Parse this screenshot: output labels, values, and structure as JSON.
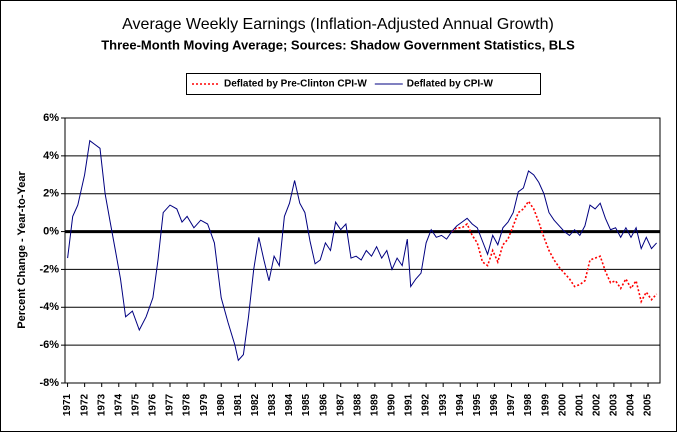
{
  "chart_data": {
    "type": "line",
    "title": "Average Weekly Earnings (Inflation-Adjusted Annual Growth)",
    "subtitle": "Three-Month Moving Average; Sources: Shadow Government Statistics, BLS",
    "y_label": "Percent Change - Year-to-Year",
    "x": [
      1971.0,
      1971.3,
      1971.6,
      1972.0,
      1972.3,
      1972.6,
      1972.9,
      1973.2,
      1973.5,
      1973.8,
      1974.1,
      1974.4,
      1974.8,
      1975.2,
      1975.6,
      1976.0,
      1976.3,
      1976.6,
      1977.0,
      1977.4,
      1977.7,
      1978.0,
      1978.4,
      1978.8,
      1979.2,
      1979.6,
      1980.0,
      1980.4,
      1980.8,
      1981.0,
      1981.3,
      1981.6,
      1981.9,
      1982.2,
      1982.5,
      1982.8,
      1983.1,
      1983.4,
      1983.7,
      1984.0,
      1984.3,
      1984.6,
      1984.9,
      1985.2,
      1985.5,
      1985.8,
      1986.1,
      1986.4,
      1986.7,
      1987.0,
      1987.3,
      1987.6,
      1987.9,
      1988.2,
      1988.5,
      1988.8,
      1989.1,
      1989.4,
      1989.7,
      1990.0,
      1990.3,
      1990.6,
      1990.9,
      1991.1,
      1991.4,
      1991.7,
      1992.0,
      1992.3,
      1992.6,
      1992.9,
      1993.2,
      1993.5,
      1993.8,
      1994.1,
      1994.4,
      1994.7,
      1995.0,
      1995.3,
      1995.6,
      1995.9,
      1996.2,
      1996.5,
      1996.8,
      1997.1,
      1997.4,
      1997.7,
      1998.0,
      1998.3,
      1998.6,
      1998.9,
      1999.2,
      1999.5,
      1999.8,
      2000.1,
      2000.4,
      2000.7,
      2001.0,
      2001.3,
      2001.6,
      2001.9,
      2002.2,
      2002.5,
      2002.8,
      2003.1,
      2003.4,
      2003.7,
      2004.0,
      2004.3,
      2004.6,
      2004.9,
      2005.2,
      2005.5
    ],
    "series": [
      {
        "name": "Deflated by Pre-Clinton CPI-W",
        "color": "#ff0000",
        "dash": "dotted",
        "values": [
          null,
          null,
          null,
          null,
          null,
          null,
          null,
          null,
          null,
          null,
          null,
          null,
          null,
          null,
          null,
          null,
          null,
          null,
          null,
          null,
          null,
          null,
          null,
          null,
          null,
          null,
          null,
          null,
          null,
          null,
          null,
          null,
          null,
          null,
          null,
          null,
          null,
          null,
          null,
          null,
          null,
          null,
          null,
          null,
          null,
          null,
          null,
          null,
          null,
          null,
          null,
          null,
          null,
          null,
          null,
          null,
          null,
          null,
          null,
          null,
          null,
          null,
          null,
          null,
          null,
          null,
          null,
          null,
          null,
          null,
          null,
          0.0,
          0.2,
          0.2,
          0.4,
          -0.2,
          -0.6,
          -1.6,
          -1.8,
          -1.0,
          -1.6,
          -0.7,
          -0.4,
          0.3,
          1.0,
          1.2,
          1.6,
          1.2,
          0.5,
          -0.3,
          -1.0,
          -1.5,
          -1.9,
          -2.2,
          -2.5,
          -2.9,
          -2.8,
          -2.6,
          -1.5,
          -1.4,
          -1.3,
          -2.1,
          -2.7,
          -2.6,
          -3.0,
          -2.5,
          -3.0,
          -2.6,
          -3.7,
          -3.2,
          -3.6,
          -3.3
        ]
      },
      {
        "name": "Deflated by CPI-W",
        "color": "#000080",
        "dash": "solid",
        "values": [
          -1.4,
          0.8,
          1.4,
          3.0,
          4.8,
          4.6,
          4.4,
          2.0,
          0.5,
          -1.0,
          -2.5,
          -4.5,
          -4.2,
          -5.2,
          -4.5,
          -3.5,
          -1.5,
          1.0,
          1.4,
          1.2,
          0.5,
          0.8,
          0.2,
          0.6,
          0.4,
          -0.6,
          -3.5,
          -4.8,
          -6.0,
          -6.8,
          -6.5,
          -4.5,
          -2.0,
          -0.3,
          -1.5,
          -2.6,
          -1.3,
          -1.8,
          0.8,
          1.5,
          2.7,
          1.5,
          1.0,
          -0.5,
          -1.7,
          -1.5,
          -0.6,
          -1.0,
          0.5,
          0.1,
          0.4,
          -1.4,
          -1.3,
          -1.5,
          -1.0,
          -1.3,
          -0.8,
          -1.4,
          -1.0,
          -2.0,
          -1.4,
          -1.8,
          -0.4,
          -2.9,
          -2.5,
          -2.2,
          -0.6,
          0.1,
          -0.3,
          -0.2,
          -0.4,
          0.0,
          0.3,
          0.5,
          0.7,
          0.4,
          0.2,
          -0.5,
          -1.2,
          -0.2,
          -0.7,
          0.2,
          0.5,
          1.0,
          2.1,
          2.3,
          3.2,
          3.0,
          2.6,
          2.0,
          1.0,
          0.6,
          0.3,
          0.0,
          -0.2,
          0.1,
          -0.2,
          0.3,
          1.4,
          1.2,
          1.5,
          0.7,
          0.1,
          0.2,
          -0.3,
          0.2,
          -0.3,
          0.2,
          -0.9,
          -0.3,
          -0.9,
          -0.6
        ]
      }
    ],
    "xlim": [
      1970.85,
      2005.7
    ],
    "xticks": [
      1971,
      1972,
      1973,
      1974,
      1975,
      1976,
      1977,
      1978,
      1979,
      1980,
      1981,
      1982,
      1983,
      1984,
      1985,
      1986,
      1987,
      1988,
      1989,
      1990,
      1991,
      1992,
      1993,
      1994,
      1995,
      1996,
      1997,
      1998,
      1999,
      2000,
      2001,
      2002,
      2003,
      2004,
      2005
    ],
    "ylim": [
      -8,
      6
    ],
    "yticks": [
      {
        "value": -8,
        "label": "-8%"
      },
      {
        "value": -6,
        "label": "-6%"
      },
      {
        "value": -4,
        "label": "-4%"
      },
      {
        "value": -2,
        "label": "-2%"
      },
      {
        "value": 0,
        "label": "0%"
      },
      {
        "value": 2,
        "label": "2%"
      },
      {
        "value": 4,
        "label": "4%"
      },
      {
        "value": 6,
        "label": "6%"
      }
    ],
    "grid": true
  }
}
